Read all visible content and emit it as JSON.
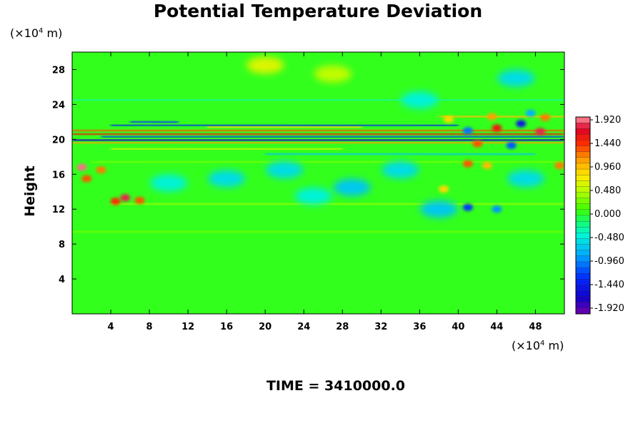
{
  "chart_data": {
    "type": "heatmap",
    "title": "Potential Temperature Deviation",
    "ylabel": "Height",
    "xlabel": "",
    "x_unit": {
      "prefix": "(×10",
      "exp": "4",
      "suffix": " m)"
    },
    "y_unit": {
      "prefix": "(×10",
      "exp": "4",
      "suffix": " m)"
    },
    "time_label": "TIME = 3410000.0",
    "xlim": [
      0,
      51
    ],
    "ylim": [
      0,
      30
    ],
    "xticks": [
      4,
      8,
      12,
      16,
      20,
      24,
      28,
      32,
      36,
      40,
      44,
      48
    ],
    "yticks": [
      4,
      8,
      12,
      16,
      20,
      24,
      28
    ],
    "colorbar": {
      "ticks": [
        "1.920",
        "1.440",
        "0.960",
        "0.480",
        "0.000",
        "-0.480",
        "-0.960",
        "-1.440",
        "-1.920"
      ],
      "range": [
        -2.0,
        2.0
      ],
      "levels": 34
    },
    "background_value": 0.05,
    "features": [
      {
        "kind": "band",
        "y": 20.6,
        "x0": 0,
        "x1": 51,
        "value": 1.6
      },
      {
        "kind": "band",
        "y": 19.9,
        "x0": 0,
        "x1": 51,
        "value": -1.7
      },
      {
        "kind": "band",
        "y": 21.0,
        "x0": 0,
        "x1": 51,
        "value": 1.4
      },
      {
        "kind": "band",
        "y": 20.3,
        "x0": 3,
        "x1": 51,
        "value": -1.2
      },
      {
        "kind": "band",
        "y": 19.6,
        "x0": 0,
        "x1": 51,
        "value": 1.1
      },
      {
        "kind": "band",
        "y": 21.6,
        "x0": 4,
        "x1": 40,
        "value": -1.3
      },
      {
        "kind": "band",
        "y": 22.0,
        "x0": 6,
        "x1": 11,
        "value": -1.2
      },
      {
        "kind": "band",
        "y": 21.4,
        "x0": 14,
        "x1": 30,
        "value": 0.9
      },
      {
        "kind": "band",
        "y": 22.6,
        "x0": 38,
        "x1": 51,
        "value": 1.0
      },
      {
        "kind": "band",
        "y": 18.9,
        "x0": 4,
        "x1": 28,
        "value": 0.7
      },
      {
        "kind": "band",
        "y": 18.3,
        "x0": 20,
        "x1": 48,
        "value": -0.7
      },
      {
        "kind": "band",
        "y": 17.4,
        "x0": 2,
        "x1": 51,
        "value": 0.35
      },
      {
        "kind": "band",
        "y": 12.6,
        "x0": 4,
        "x1": 51,
        "value": 0.45
      },
      {
        "kind": "band",
        "y": 9.4,
        "x0": 0,
        "x1": 51,
        "value": 0.25
      },
      {
        "kind": "band",
        "y": 24.5,
        "x0": 0,
        "x1": 51,
        "value": -0.3
      },
      {
        "kind": "blob",
        "x": 20,
        "y": 28.5,
        "value": 0.7
      },
      {
        "kind": "blob",
        "x": 27,
        "y": 27.5,
        "value": 0.5
      },
      {
        "kind": "blob",
        "x": 46,
        "y": 27.0,
        "value": -0.5
      },
      {
        "kind": "blob",
        "x": 36,
        "y": 24.5,
        "value": -0.45
      },
      {
        "kind": "blob",
        "x": 1,
        "y": 16.8,
        "value": 1.9
      },
      {
        "kind": "blob",
        "x": 1.5,
        "y": 15.5,
        "value": 1.4
      },
      {
        "kind": "blob",
        "x": 3,
        "y": 16.5,
        "value": 1.2
      },
      {
        "kind": "blob",
        "x": 5.5,
        "y": 13.3,
        "value": 1.8
      },
      {
        "kind": "blob",
        "x": 4.5,
        "y": 12.9,
        "value": 1.5
      },
      {
        "kind": "blob",
        "x": 7,
        "y": 13.0,
        "value": 1.3
      },
      {
        "kind": "blob",
        "x": 41,
        "y": 17.2,
        "value": 1.3
      },
      {
        "kind": "blob",
        "x": 43,
        "y": 17.0,
        "value": 1.0
      },
      {
        "kind": "blob",
        "x": 50.5,
        "y": 17.0,
        "value": 1.2
      },
      {
        "kind": "blob",
        "x": 38.5,
        "y": 14.3,
        "value": 0.9
      },
      {
        "kind": "blob",
        "x": 41,
        "y": 12.2,
        "value": -1.2
      },
      {
        "kind": "blob",
        "x": 44,
        "y": 12.0,
        "value": -0.9
      },
      {
        "kind": "blob",
        "x": 38,
        "y": 12.0,
        "value": -0.6
      },
      {
        "kind": "blob",
        "x": 16,
        "y": 15.5,
        "value": -0.55
      },
      {
        "kind": "blob",
        "x": 22,
        "y": 16.5,
        "value": -0.5
      },
      {
        "kind": "blob",
        "x": 29,
        "y": 14.5,
        "value": -0.6
      },
      {
        "kind": "blob",
        "x": 34,
        "y": 16.5,
        "value": -0.55
      },
      {
        "kind": "blob",
        "x": 47,
        "y": 15.5,
        "value": -0.55
      },
      {
        "kind": "blob",
        "x": 10,
        "y": 15.0,
        "value": -0.4
      },
      {
        "kind": "blob",
        "x": 25,
        "y": 13.5,
        "value": -0.4
      },
      {
        "kind": "blob",
        "x": 44,
        "y": 21.3,
        "value": 1.6
      },
      {
        "kind": "blob",
        "x": 46.5,
        "y": 21.8,
        "value": -1.5
      },
      {
        "kind": "blob",
        "x": 48.5,
        "y": 20.9,
        "value": 1.8
      },
      {
        "kind": "blob",
        "x": 42,
        "y": 19.5,
        "value": 1.4
      },
      {
        "kind": "blob",
        "x": 45.5,
        "y": 19.3,
        "value": -1.1
      },
      {
        "kind": "blob",
        "x": 49,
        "y": 22.5,
        "value": 1.2
      },
      {
        "kind": "blob",
        "x": 41,
        "y": 21.0,
        "value": -1.0
      },
      {
        "kind": "blob",
        "x": 47.5,
        "y": 23.0,
        "value": -0.8
      },
      {
        "kind": "blob",
        "x": 43.5,
        "y": 22.6,
        "value": 1.1
      },
      {
        "kind": "blob",
        "x": 39,
        "y": 22.3,
        "value": 0.9
      }
    ]
  }
}
